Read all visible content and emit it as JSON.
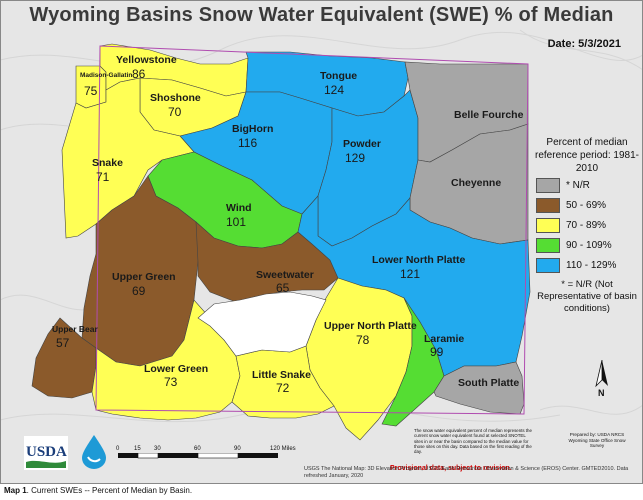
{
  "title": "Wyoming Basins Snow Water Equivalent (SWE) % of Median",
  "date_label": "Date: 5/3/2021",
  "basins": [
    {
      "name": "Madison-Gallatin",
      "value": "75",
      "category": "70 - 89%"
    },
    {
      "name": "Yellowstone",
      "value": "86",
      "category": "70 - 89%"
    },
    {
      "name": "Shoshone",
      "value": "70",
      "category": "70 - 89%"
    },
    {
      "name": "Tongue",
      "value": "124",
      "category": "110 - 129%"
    },
    {
      "name": "BigHorn",
      "value": "116",
      "category": "110 - 129%"
    },
    {
      "name": "Powder",
      "value": "129",
      "category": "110 - 129%"
    },
    {
      "name": "Belle Fourche",
      "value": "",
      "category": "* N/R"
    },
    {
      "name": "Snake",
      "value": "71",
      "category": "70 - 89%"
    },
    {
      "name": "Cheyenne",
      "value": "",
      "category": "* N/R"
    },
    {
      "name": "Wind",
      "value": "101",
      "category": "90 - 109%"
    },
    {
      "name": "Upper Green",
      "value": "69",
      "category": "50 - 69%"
    },
    {
      "name": "Sweetwater",
      "value": "65",
      "category": "50 - 69%"
    },
    {
      "name": "Lower North Platte",
      "value": "121",
      "category": "110 - 129%"
    },
    {
      "name": "Upper Bear",
      "value": "57",
      "category": "50 - 69%"
    },
    {
      "name": "Upper North Platte",
      "value": "78",
      "category": "70 - 89%"
    },
    {
      "name": "Laramie",
      "value": "99",
      "category": "90 - 109%"
    },
    {
      "name": "Lower Green",
      "value": "73",
      "category": "70 - 89%"
    },
    {
      "name": "Little Snake",
      "value": "72",
      "category": "70 - 89%"
    },
    {
      "name": "South Platte",
      "value": "",
      "category": "* N/R"
    }
  ],
  "legend": {
    "title": "Percent of median reference period: 1981-2010",
    "items": [
      {
        "label": "* N/R",
        "color": "#a6a6a6"
      },
      {
        "label": "50 - 69%",
        "color": "#8b5a2b"
      },
      {
        "label": "70 - 89%",
        "color": "#ffff55"
      },
      {
        "label": "90 - 109%",
        "color": "#55dd33"
      },
      {
        "label": "110 - 129%",
        "color": "#22aaee"
      }
    ],
    "note": "* = N/R (Not Representative of basin conditions)"
  },
  "north_label": "N",
  "scale_ticks": [
    "0",
    "15",
    "30",
    "60",
    "90",
    "120 Miles"
  ],
  "logos": {
    "usda": "USDA",
    "drop": "nrcs-water-drop-icon"
  },
  "swe_note": "The snow water equivalent percent of median represents the current snow water equivalent found at selected SNOTEL sites in or near the basin compared to the median value for those sites on this day. Data based on the first reading of the day.",
  "prepared_by": "Prepared by: USDA NRCS Wyoming State Office Snow Survey",
  "provisional": "Provisional data, subject to revision.",
  "source_note": "USGS The National Map: 3D Elevation Program, USGS Earth Resources Observation & Science (EROS) Center. GMTED2010. Data refreshed January, 2020",
  "caption": {
    "prefix": "Map 1",
    "text": ". Current SWEs -- Percent of Median by Basin."
  }
}
